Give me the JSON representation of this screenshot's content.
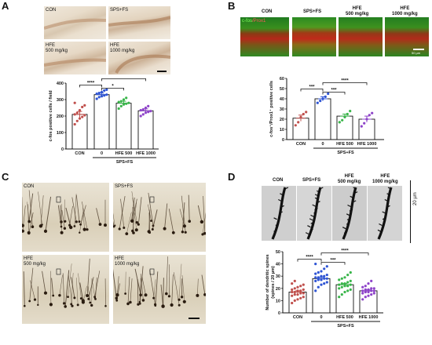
{
  "panels": {
    "A": {
      "letter": "A",
      "micro_labels": [
        "CON",
        "SPS+FS",
        "HFE\n500 mg/kg",
        "HFE\n1000 mg/kg"
      ],
      "group_label": "SPS+FS",
      "colors": {
        "CON": "#c0504d",
        "SPS": "#2f55d4",
        "HFE500": "#39b54a",
        "HFE1000": "#8e44c9"
      }
    },
    "B": {
      "letter": "B",
      "micro_labels": [
        "CON",
        "SPS+FS",
        "HFE\n500 mg/kg",
        "HFE\n1000 mg/kg"
      ],
      "channel_label_green": "c-fos",
      "channel_label_red": "/Prox1",
      "scale_text": "50 µm",
      "group_label": "SPS+FS"
    },
    "C": {
      "letter": "C",
      "micro_labels": [
        "CON",
        "SPS+FS",
        "HFE\n500 mg/kg",
        "HFE\n1000 mg/kg"
      ]
    },
    "D": {
      "letter": "D",
      "micro_labels": [
        "CON",
        "SPS+FS",
        "HFE\n500 mg/kg",
        "HFE\n1000 mg/kg"
      ],
      "scale_text": "20 µm",
      "group_label": "SPS+FS"
    }
  },
  "chart_data": [
    {
      "id": "A",
      "type": "bar",
      "categories": [
        "CON",
        "0",
        "HFE 500",
        "HFE 1000"
      ],
      "values": [
        210,
        330,
        278,
        232
      ],
      "errors": [
        18,
        10,
        12,
        12
      ],
      "ylabel": "c-fos positive cells / field",
      "yticks": [
        0,
        100,
        200,
        300,
        400
      ],
      "ylim": [
        0,
        400
      ],
      "significance": [
        "****",
        "*",
        "****"
      ],
      "points": [
        [
          150,
          170,
          185,
          195,
          205,
          210,
          220,
          235,
          255,
          265,
          280
        ],
        [
          305,
          315,
          320,
          325,
          330,
          335,
          340,
          345,
          355,
          360
        ],
        [
          245,
          260,
          270,
          275,
          280,
          285,
          290,
          300,
          310
        ],
        [
          200,
          210,
          220,
          225,
          230,
          235,
          240,
          250,
          260
        ]
      ],
      "bar_colors": [
        "#c0504d",
        "#2f55d4",
        "#39b54a",
        "#8e44c9"
      ]
    },
    {
      "id": "B",
      "type": "bar",
      "categories": [
        "CON",
        "0",
        "HFE 500",
        "HFE 1000"
      ],
      "values": [
        21,
        40,
        23,
        20
      ],
      "errors": [
        3,
        2,
        2,
        3
      ],
      "ylabel": "c-fos⁺/Prox1⁺ positive cells",
      "yticks": [
        0,
        10,
        20,
        30,
        40,
        50,
        60
      ],
      "ylim": [
        0,
        60
      ],
      "significance": [
        "***",
        "***",
        "****"
      ],
      "points": [
        [
          14,
          17,
          22,
          25,
          27
        ],
        [
          36,
          38,
          40,
          42,
          45
        ],
        [
          17,
          19,
          22,
          25,
          28
        ],
        [
          13,
          16,
          20,
          24,
          26
        ]
      ],
      "bar_colors": [
        "#c0504d",
        "#2f55d4",
        "#39b54a",
        "#8e44c9"
      ]
    },
    {
      "id": "D",
      "type": "bar",
      "categories": [
        "CON",
        "0",
        "HFE 500",
        "HFE 1000"
      ],
      "values": [
        17,
        28,
        23,
        18
      ],
      "errors": [
        1,
        1.2,
        1,
        0.8
      ],
      "ylabel": "Number of dendritic spines\n(spines / 20 µm)",
      "yticks": [
        0,
        10,
        20,
        30,
        40,
        50
      ],
      "ylim": [
        0,
        50
      ],
      "significance": [
        "****",
        "***",
        "****"
      ],
      "points": [
        [
          8,
          10,
          11,
          12,
          13,
          14,
          15,
          15,
          16,
          16,
          17,
          17,
          18,
          18,
          19,
          19,
          20,
          21,
          22,
          23,
          24,
          26
        ],
        [
          18,
          21,
          23,
          24,
          25,
          26,
          27,
          27,
          28,
          28,
          29,
          29,
          30,
          30,
          31,
          32,
          33,
          34,
          36,
          38,
          40
        ],
        [
          13,
          15,
          17,
          18,
          19,
          20,
          21,
          22,
          22,
          23,
          23,
          24,
          24,
          25,
          26,
          27,
          28,
          29,
          31,
          33
        ],
        [
          11,
          13,
          14,
          15,
          16,
          16,
          17,
          17,
          18,
          18,
          18,
          19,
          19,
          20,
          20,
          21,
          22,
          24,
          26
        ]
      ],
      "bar_colors": [
        "#c0504d",
        "#2f55d4",
        "#39b54a",
        "#8e44c9"
      ]
    }
  ]
}
